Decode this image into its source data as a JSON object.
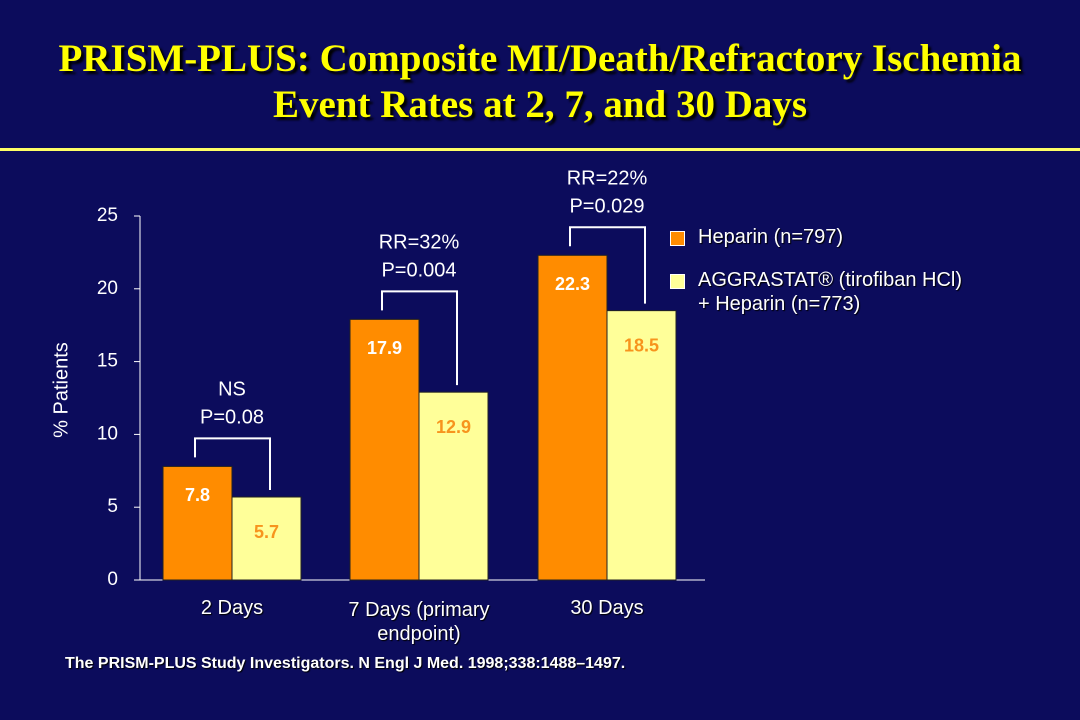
{
  "chart_data": {
    "type": "bar",
    "title": "PRISM-PLUS: Composite MI/Death/Refractory Ischemia Event Rates at 2, 7, and 30 Days",
    "y_label": "% Patients",
    "categories": [
      "2 Days",
      "7 Days (primary endpoint)",
      "30 Days"
    ],
    "series": [
      {
        "name": "Heparin (n=797)",
        "color": "#ff8c00",
        "label_color": "#ffffff",
        "values": [
          7.8,
          17.9,
          22.3
        ]
      },
      {
        "name": "AGGRASTAT® (tirofiban HCl)\n+  Heparin (n=773)",
        "color": "#ffff99",
        "label_color": "#f7941d",
        "values": [
          5.7,
          12.9,
          18.5
        ]
      }
    ],
    "annotations": [
      {
        "lines": [
          "NS",
          "P=0.08"
        ]
      },
      {
        "lines": [
          "RR=32%",
          "P=0.004"
        ]
      },
      {
        "lines": [
          "RR=22%",
          "P=0.029"
        ]
      }
    ],
    "ylim": [
      0,
      25
    ],
    "yticks": [
      0,
      5,
      10,
      15,
      20,
      25
    ],
    "source": "The PRISM-PLUS Study Investigators. N Engl J Med. 1998;338:1488–1497."
  }
}
